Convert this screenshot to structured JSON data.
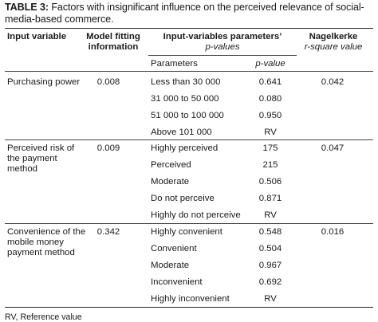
{
  "caption": {
    "label": "TABLE 3:",
    "text": " Factors with insignificant influence on the perceived relevance of social-media-based commerce."
  },
  "headers": {
    "input_variable": "Input variable",
    "model_fitting_1": "Model fitting",
    "model_fitting_2": "information",
    "params_1": "Input-variables parameters’",
    "params_2": "p-values",
    "nagelkerke_1": "Nagelkerke",
    "nagelkerke_2": "r-square value",
    "sub_parameters": "Parameters",
    "sub_pvalue": "p-value"
  },
  "groups": [
    {
      "variable": "Purchasing power",
      "model_fitting": "0.008",
      "nagelkerke": "0.042",
      "rows": [
        {
          "parameter": "Less than 30 000",
          "p_value": "0.641"
        },
        {
          "parameter": "31 000 to 50 000",
          "p_value": "0.080"
        },
        {
          "parameter": "51 000 to 100 000",
          "p_value": "0.950"
        },
        {
          "parameter": "Above 101 000",
          "p_value": "RV"
        }
      ]
    },
    {
      "variable": "Perceived risk of the payment method",
      "model_fitting": "0.009",
      "nagelkerke": "0.047",
      "rows": [
        {
          "parameter": "Highly perceived",
          "p_value": "175"
        },
        {
          "parameter": "Perceived",
          "p_value": "215"
        },
        {
          "parameter": "Moderate",
          "p_value": "0.506"
        },
        {
          "parameter": "Do not perceive",
          "p_value": "0.871"
        },
        {
          "parameter": "Highly do not perceive",
          "p_value": "RV"
        }
      ]
    },
    {
      "variable": "Convenience of the mobile money payment method",
      "model_fitting": "0.342",
      "nagelkerke": "0.016",
      "rows": [
        {
          "parameter": "Highly convenient",
          "p_value": "0.548"
        },
        {
          "parameter": "Convenient",
          "p_value": "0.504"
        },
        {
          "parameter": "Moderate",
          "p_value": "0.967"
        },
        {
          "parameter": "Inconvenient",
          "p_value": "0.692"
        },
        {
          "parameter": "Highly inconvenient",
          "p_value": "RV"
        }
      ]
    }
  ],
  "footnote": "RV, Reference value"
}
